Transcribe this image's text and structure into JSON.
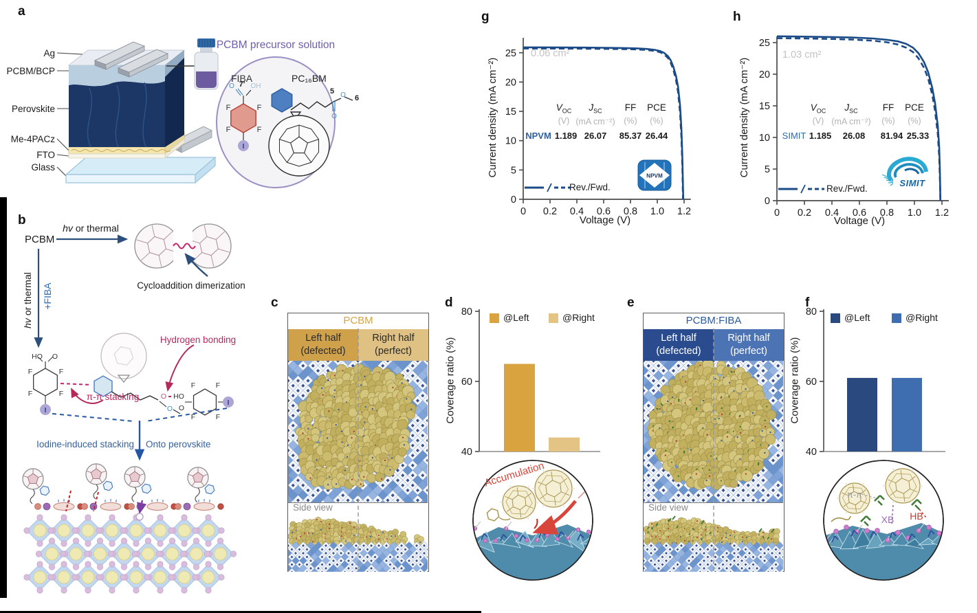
{
  "figure": {
    "panel_labels": {
      "a": "a",
      "b": "b",
      "c": "c",
      "d": "d",
      "e": "e",
      "f": "f",
      "g": "g",
      "h": "h"
    }
  },
  "colors": {
    "curve_navy": "#1b4b87",
    "gold_dark": "#d9a43f",
    "gold_light": "#e3c484",
    "gold_header_left": "#cfa14b",
    "gold_header_right": "#dfc183",
    "gold_title": "#d9a43f",
    "navy_dark": "#29497f",
    "blue_mid": "#3e6db0",
    "navy_header_left": "#2a4c8e",
    "blue_header_right": "#4c74b5",
    "blue_title": "#2c5a9e",
    "red_annotation": "#b5295b",
    "blue_label": "#2e6db4",
    "purple_title": "#6f5fa8",
    "gray_label": "#bcbcbc",
    "npvm_text_blue": "#2e5fa3",
    "simit_text_blue": "#2a6bb5",
    "logo_blue": "#2273ba"
  },
  "panel_a": {
    "layer_labels": [
      "Ag",
      "PCBM/BCP",
      "Perovskite",
      "Me-4PACz",
      "FTO",
      "Glass"
    ],
    "solution_title": "PCBM precursor solution",
    "fiba_name": "FIBA",
    "pcbm_name": "PC₁₆BM",
    "atoms": {
      "f": "F",
      "i": "I",
      "o": "O",
      "oh": "OH",
      "ho": "HO",
      "prime": "7'",
      "n5": "5",
      "n6": "6"
    }
  },
  "panel_b": {
    "pcbm": "PCBM",
    "hv": "hv",
    "or_thermal": " or thermal",
    "plus_fiba": "+FIBA",
    "cyclo": "Cycloaddition dimerization",
    "hbond": "Hydrogen bonding",
    "pipi": "π-π stacking",
    "iodine": "Iodine-induced stacking",
    "onto": "Onto perovskite"
  },
  "panel_c": {
    "title": "PCBM",
    "left1": "Left half",
    "left2": "(defected)",
    "right1": "Right half",
    "right2": "(perfect)",
    "side": "Side view"
  },
  "panel_e": {
    "title": "PCBM:FIBA",
    "left1": "Left half",
    "left2": "(defected)",
    "right1": "Right half",
    "right2": "(perfect)",
    "side": "Side view"
  },
  "inset_d": {
    "label": "Accumulation"
  },
  "inset_f": {
    "pi": "π-π",
    "xb": "XB",
    "hb": "HB"
  },
  "jv_header": {
    "voc_main": "V",
    "voc_sub": "OC",
    "jsc_main": "J",
    "jsc_sub": "SC",
    "ff": "FF",
    "pce": "PCE",
    "u_v": "(V)",
    "u_j": "(mA cm⁻²)",
    "u_pct": "(%)"
  },
  "chart_data": [
    {
      "id": "d",
      "type": "bar",
      "categories": [
        "@Left",
        "@Right"
      ],
      "values": [
        65,
        44
      ],
      "colors": [
        "#d9a43f",
        "#e3c484"
      ],
      "ylabel": "Coverage ratio (%)",
      "ylim": [
        40,
        80
      ],
      "yticks": [
        40,
        60,
        80
      ],
      "legend_position": "top",
      "grid": false
    },
    {
      "id": "f",
      "type": "bar",
      "categories": [
        "@Left",
        "@Right"
      ],
      "values": [
        61,
        61
      ],
      "colors": [
        "#29497f",
        "#3e6db0"
      ],
      "ylabel": "Coverage ratio (%)",
      "ylim": [
        40,
        80
      ],
      "yticks": [
        40,
        60,
        80
      ],
      "legend_position": "top",
      "grid": false
    },
    {
      "id": "g",
      "type": "line",
      "xlabel": "Voltage (V)",
      "ylabel": "Current density (mA cm⁻²)",
      "xlim": [
        0,
        1.25
      ],
      "ylim": [
        0,
        27.5
      ],
      "xticks": [
        0,
        0.2,
        0.4,
        0.6,
        0.8,
        1.0,
        1.2
      ],
      "yticks": [
        0,
        5,
        10,
        15,
        20,
        25
      ],
      "area_label": "0.06 cm²",
      "legend": "Rev./Fwd.",
      "device": "NPVM",
      "grid": false,
      "metrics": {
        "voc": "1.189",
        "jsc": "26.07",
        "ff": "85.37",
        "pce": "26.44"
      },
      "series": [
        {
          "name": "Rev",
          "style": "solid",
          "points": [
            [
              0,
              25.92
            ],
            [
              0.15,
              25.92
            ],
            [
              0.3,
              25.9
            ],
            [
              0.45,
              25.88
            ],
            [
              0.6,
              25.85
            ],
            [
              0.75,
              25.8
            ],
            [
              0.85,
              25.74
            ],
            [
              0.92,
              25.65
            ],
            [
              0.98,
              25.5
            ],
            [
              1.02,
              25.3
            ],
            [
              1.05,
              25.0
            ],
            [
              1.08,
              24.4
            ],
            [
              1.1,
              23.7
            ],
            [
              1.12,
              22.6
            ],
            [
              1.14,
              21.0
            ],
            [
              1.155,
              19.2
            ],
            [
              1.17,
              16.0
            ],
            [
              1.18,
              12.0
            ],
            [
              1.187,
              7.0
            ],
            [
              1.192,
              2.0
            ],
            [
              1.194,
              0
            ]
          ]
        },
        {
          "name": "Fwd",
          "style": "dashed",
          "points": [
            [
              0,
              25.72
            ],
            [
              0.2,
              25.72
            ],
            [
              0.4,
              25.7
            ],
            [
              0.6,
              25.66
            ],
            [
              0.8,
              25.6
            ],
            [
              0.9,
              25.5
            ],
            [
              0.97,
              25.35
            ],
            [
              1.02,
              25.1
            ],
            [
              1.05,
              24.75
            ],
            [
              1.08,
              24.1
            ],
            [
              1.1,
              23.3
            ],
            [
              1.12,
              22.1
            ],
            [
              1.14,
              20.3
            ],
            [
              1.155,
              18.3
            ],
            [
              1.17,
              14.8
            ],
            [
              1.18,
              10.5
            ],
            [
              1.187,
              5.5
            ],
            [
              1.191,
              1.0
            ],
            [
              1.192,
              0
            ]
          ]
        }
      ]
    },
    {
      "id": "h",
      "type": "line",
      "xlabel": "Voltage (V)",
      "ylabel": "Current density (mA cm⁻²)",
      "xlim": [
        0,
        1.25
      ],
      "ylim": [
        0,
        27.5
      ],
      "xticks": [
        0,
        0.2,
        0.4,
        0.6,
        0.8,
        1.0,
        1.2
      ],
      "yticks": [
        0,
        5,
        10,
        15,
        20,
        25
      ],
      "area_label": "1.03 cm²",
      "legend": "Rev./Fwd.",
      "device": "SIMIT",
      "grid": false,
      "metrics": {
        "voc": "1.185",
        "jsc": "26.08",
        "ff": "81.94",
        "pce": "25.33"
      },
      "series": [
        {
          "name": "Rev",
          "style": "solid",
          "points": [
            [
              0,
              26.0
            ],
            [
              0.2,
              25.95
            ],
            [
              0.4,
              25.88
            ],
            [
              0.55,
              25.8
            ],
            [
              0.7,
              25.65
            ],
            [
              0.8,
              25.45
            ],
            [
              0.88,
              25.2
            ],
            [
              0.94,
              24.8
            ],
            [
              0.99,
              24.2
            ],
            [
              1.03,
              23.3
            ],
            [
              1.07,
              21.9
            ],
            [
              1.1,
              20.3
            ],
            [
              1.13,
              17.8
            ],
            [
              1.15,
              15.4
            ],
            [
              1.17,
              11.8
            ],
            [
              1.18,
              8.5
            ],
            [
              1.185,
              5.0
            ],
            [
              1.188,
              1.0
            ],
            [
              1.189,
              0
            ]
          ]
        },
        {
          "name": "Fwd",
          "style": "dashed",
          "points": [
            [
              0,
              25.7
            ],
            [
              0.2,
              25.65
            ],
            [
              0.4,
              25.58
            ],
            [
              0.55,
              25.48
            ],
            [
              0.7,
              25.3
            ],
            [
              0.8,
              25.05
            ],
            [
              0.88,
              24.7
            ],
            [
              0.94,
              24.2
            ],
            [
              0.99,
              23.5
            ],
            [
              1.03,
              22.5
            ],
            [
              1.07,
              21.0
            ],
            [
              1.1,
              19.3
            ],
            [
              1.13,
              16.7
            ],
            [
              1.15,
              14.2
            ],
            [
              1.17,
              10.5
            ],
            [
              1.18,
              7.0
            ],
            [
              1.185,
              3.5
            ],
            [
              1.188,
              0.5
            ],
            [
              1.189,
              0
            ]
          ]
        }
      ]
    }
  ]
}
